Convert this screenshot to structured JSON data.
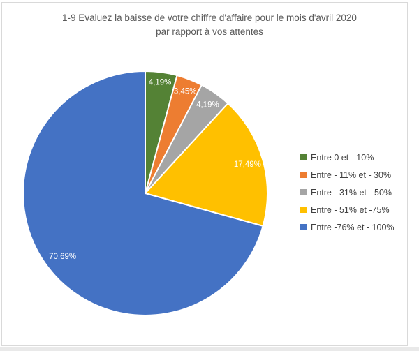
{
  "page": {
    "background_color": "#ffffff",
    "frame_border_color": "#d9d9d9"
  },
  "chart_data": {
    "type": "pie",
    "title_line1": "1-9 Evaluez la baisse de votre chiffre d'affaire pour le mois d'avril 2020",
    "title_line2": "par rapport à vos attentes",
    "title": "1-9 Evaluez la baisse de votre chiffre d'affaire pour le mois d'avril 2020 par rapport à vos attentes",
    "legend_position": "right",
    "start_angle_deg": 0,
    "direction": "clockwise",
    "label_color": "#ffffff",
    "slices": [
      {
        "label": "Entre 0 et - 10%",
        "value": 4.19,
        "display": "4,19%",
        "color": "#548235"
      },
      {
        "label": "Entre - 11% et - 30%",
        "value": 3.45,
        "display": "3,45%",
        "color": "#ED7D31"
      },
      {
        "label": "Entre - 31% et - 50%",
        "value": 4.19,
        "display": "4,19%",
        "color": "#A5A5A5"
      },
      {
        "label": "Entre - 51% et -75%",
        "value": 17.49,
        "display": "17,49%",
        "color": "#FFC000"
      },
      {
        "label": "Entre -76% et - 100%",
        "value": 70.69,
        "display": "70,69%",
        "color": "#4472C4"
      }
    ]
  }
}
